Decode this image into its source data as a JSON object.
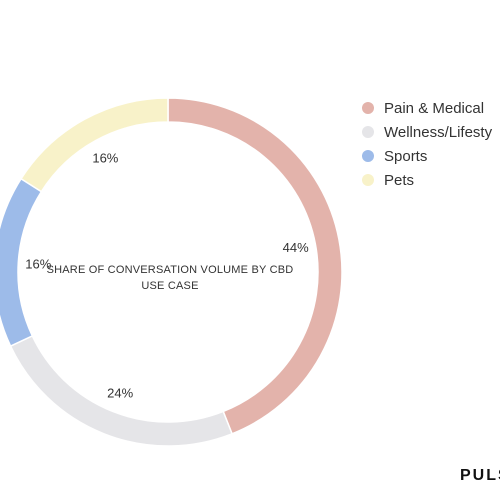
{
  "chart_data": {
    "type": "pie",
    "title": "SHARE OF CONVERSATION VOLUME BY CBD USE CASE",
    "legend_position": "right",
    "categories": [
      "Pain & Medical",
      "Wellness/Lifestyle",
      "Sports",
      "Pets"
    ],
    "values": [
      44,
      24,
      16,
      16
    ],
    "labels": [
      "44%",
      "24%",
      "16%",
      "16%"
    ],
    "colors": [
      "#e3b3ab",
      "#e5e5e8",
      "#9dbbe9",
      "#f8f2c9"
    ]
  },
  "legend": {
    "items": [
      "Pain & Medical",
      "Wellness/Lifesty",
      "Sports",
      "Pets"
    ]
  },
  "brand": {
    "text": "PULS"
  }
}
